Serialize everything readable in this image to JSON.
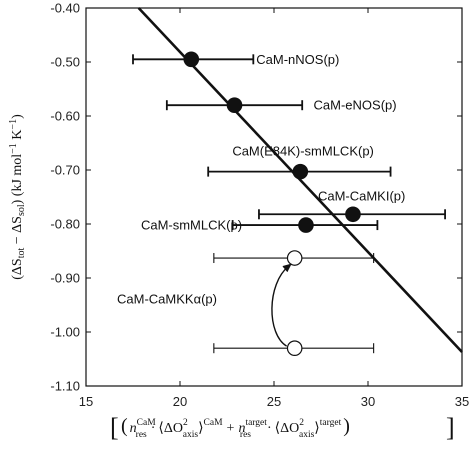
{
  "chart_data": {
    "type": "scatter",
    "title": "",
    "xlim": [
      15,
      35
    ],
    "ylim": [
      -1.1,
      -0.4
    ],
    "x_ticks": [
      15,
      20,
      25,
      30,
      35
    ],
    "x_tick_labels": [
      "15",
      "20",
      "25",
      "30",
      "35"
    ],
    "y_ticks": [
      -0.4,
      -0.5,
      -0.6,
      -0.7,
      -0.8,
      -0.9,
      -1.0,
      -1.1
    ],
    "y_tick_labels": [
      "-0.40",
      "-0.50",
      "-0.60",
      "-0.70",
      "-0.80",
      "-0.90",
      "-1.00",
      "-1.10"
    ],
    "ylabel": "(ΔS tot − ΔS sol) (kJ mol⁻¹ K⁻¹)",
    "ylabel_parts": {
      "open": "(ΔS",
      "sub1": "tot",
      "mid": " − ΔS",
      "sub2": "sol",
      "close": ") (kJ mol",
      "sup1": "−1",
      "k": " K",
      "sup2": "−1",
      "end": ")"
    },
    "xlabel_parts": {
      "bracket_open": "[",
      "paren_open": "(",
      "n1": "n",
      "n1_sup": "CaM",
      "n1_sub": "res",
      "dot1": "·",
      "angle_open1": "⟨ΔO",
      "o1_sup": "2",
      "o1_sub": "axis",
      "angle_close1": "⟩",
      "angle_sup1": "CaM",
      "plus": "+",
      "n2": "n",
      "n2_sup": "target",
      "n2_sub": "res",
      "dot2": "·",
      "angle_open2": "⟨ΔO",
      "o2_sup": "2",
      "o2_sub": "axis",
      "angle_close2": "⟩",
      "angle_sup2": "target",
      "paren_close": ")",
      "bracket_close": "]"
    },
    "fit_line": {
      "x": [
        17.8,
        35.0
      ],
      "y": [
        -0.4,
        -1.037
      ]
    },
    "points": [
      {
        "label": "CaM-nNOS(p)",
        "x": 20.6,
        "y": -0.495,
        "xerr_low": 17.5,
        "xerr_high": 23.9,
        "filled": true
      },
      {
        "label": "CaM-eNOS(p)",
        "x": 22.9,
        "y": -0.58,
        "xerr_low": 19.3,
        "xerr_high": 26.5,
        "filled": true
      },
      {
        "label": "CaM(E84K)-smMLCK(p)",
        "x": 26.4,
        "y": -0.703,
        "xerr_low": 21.5,
        "xerr_high": 31.2,
        "filled": true
      },
      {
        "label": "CaM-CaMKI(p)",
        "x": 29.2,
        "y": -0.782,
        "xerr_low": 24.2,
        "xerr_high": 34.1,
        "filled": true
      },
      {
        "label": "CaM-smMLCK(p)",
        "x": 26.7,
        "y": -0.802,
        "xerr_low": 22.8,
        "xerr_high": 30.5,
        "filled": true
      },
      {
        "label": "",
        "x": 26.1,
        "y": -0.863,
        "xerr_low": 21.8,
        "xerr_high": 30.3,
        "filled": false
      },
      {
        "label": "",
        "x": 26.1,
        "y": -1.03,
        "xerr_low": 21.8,
        "xerr_high": 30.3,
        "filled": false
      }
    ],
    "group_label": "CaM-CaMKKα(p)",
    "arrow": {
      "from": {
        "x": 26.1,
        "y": -1.03
      },
      "to": {
        "x": 26.1,
        "y": -0.863
      }
    },
    "grid": false,
    "legend": "none"
  }
}
